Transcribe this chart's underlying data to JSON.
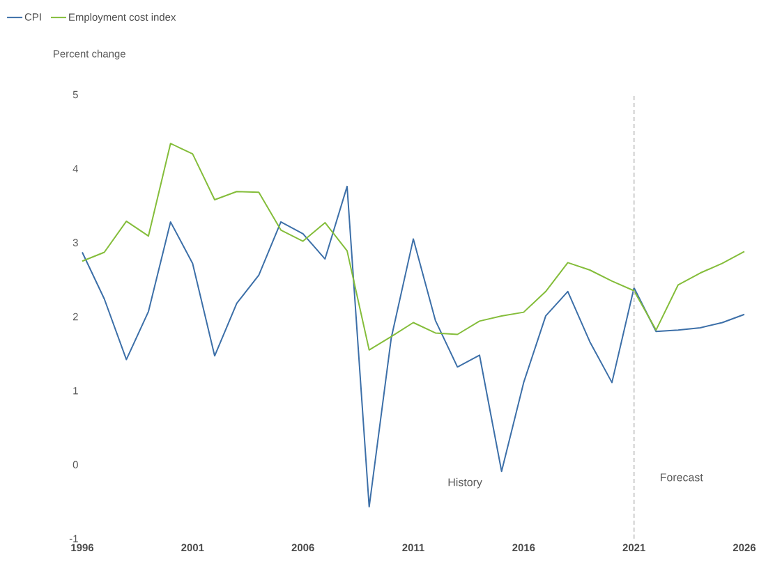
{
  "chart_data": {
    "type": "line",
    "ylabel": "Percent change",
    "x": [
      1996,
      1997,
      1998,
      1999,
      2000,
      2001,
      2002,
      2003,
      2004,
      2005,
      2006,
      2007,
      2008,
      2009,
      2010,
      2011,
      2012,
      2013,
      2014,
      2015,
      2016,
      2017,
      2018,
      2019,
      2020,
      2021,
      2022,
      2023,
      2024,
      2025,
      2026
    ],
    "series": [
      {
        "name": "CPI",
        "color": "#3c6fa8",
        "values": [
          2.87,
          2.24,
          1.42,
          2.07,
          3.28,
          2.72,
          1.47,
          2.18,
          2.56,
          3.28,
          3.12,
          2.78,
          3.76,
          -0.57,
          1.71,
          3.05,
          1.95,
          1.32,
          1.48,
          -0.09,
          1.11,
          2.01,
          2.34,
          1.66,
          1.11,
          2.39,
          1.8,
          1.82,
          1.85,
          1.92,
          2.03
        ]
      },
      {
        "name": "Employment cost index",
        "color": "#84bd3a",
        "values": [
          2.75,
          2.87,
          3.29,
          3.09,
          4.34,
          4.2,
          3.58,
          3.69,
          3.68,
          3.17,
          3.02,
          3.27,
          2.89,
          1.55,
          1.73,
          1.92,
          1.78,
          1.76,
          1.94,
          2.01,
          2.06,
          2.34,
          2.73,
          2.63,
          2.48,
          2.35,
          1.82,
          2.43,
          2.59,
          2.72,
          2.88
        ]
      }
    ],
    "xlim": [
      1996,
      2026
    ],
    "xticks": [
      1996,
      2001,
      2006,
      2011,
      2016,
      2021,
      2026
    ],
    "ylim": [
      -1,
      5
    ],
    "yticks": [
      -1,
      0,
      1,
      2,
      3,
      4,
      5
    ],
    "ref_lines": [
      {
        "axis": "x",
        "value": 2021,
        "color": "#c8c8c8",
        "line_style": "dashed"
      }
    ],
    "annotations": [
      "History",
      "Forecast"
    ],
    "grid": false,
    "legend": "top left",
    "marker": "none",
    "line_style": "solid"
  }
}
